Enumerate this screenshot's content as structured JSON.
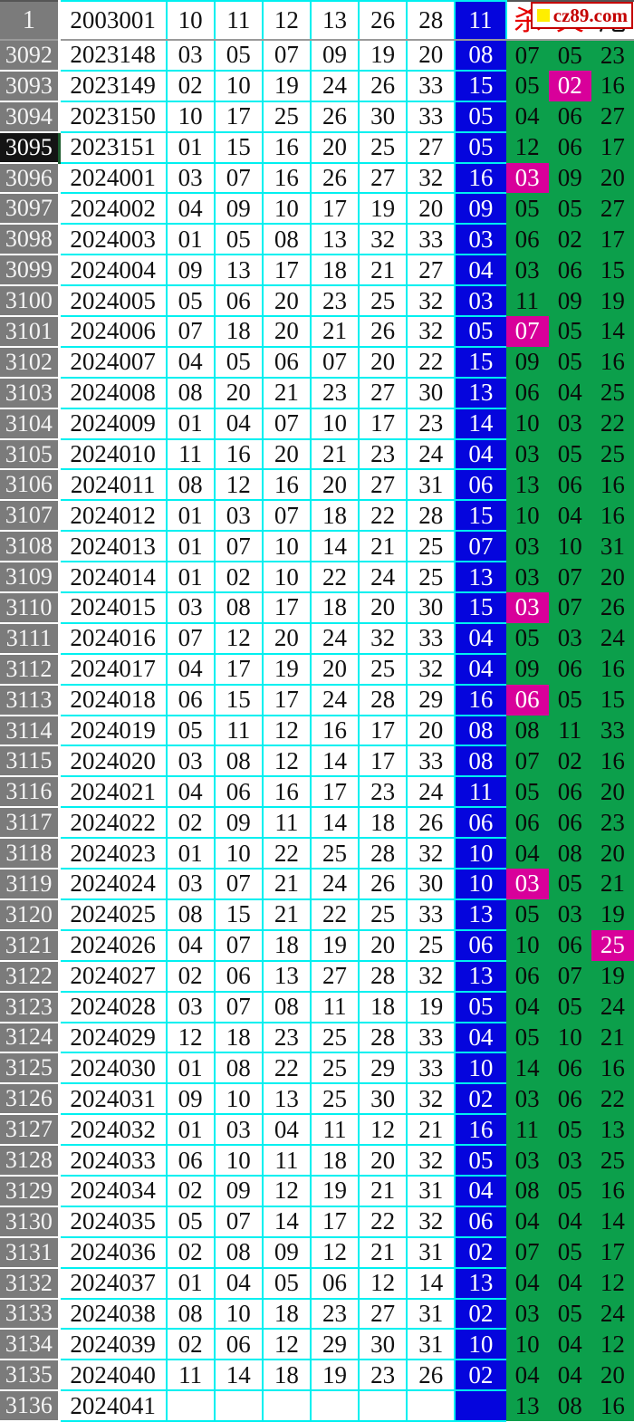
{
  "logo": {
    "text": "cz89.com",
    "square_color": "#ffee00",
    "text_color": "#c40000"
  },
  "colors": {
    "index_bg": "#7b7b7b",
    "selected_index_bg": "#141414",
    "grid": "#00f0f0",
    "blue_ball": "#0505dd",
    "kill_bg": "#0c9f4b",
    "hit_bg": "#d8009a",
    "header_char_red": "#e60000"
  },
  "header": {
    "index": "1",
    "period": "2003001",
    "reds": [
      "10",
      "11",
      "12",
      "13",
      "26",
      "28"
    ],
    "blue": "11",
    "kill_cols": [
      "杀",
      "失",
      "尾"
    ]
  },
  "rows": [
    {
      "idx": "3092",
      "period": "2023148",
      "reds": [
        "03",
        "05",
        "07",
        "09",
        "19",
        "20"
      ],
      "blue": "08",
      "kills": [
        "07",
        "05",
        "23"
      ],
      "hits": [
        0,
        0,
        0
      ],
      "selected": false
    },
    {
      "idx": "3093",
      "period": "2023149",
      "reds": [
        "02",
        "10",
        "19",
        "24",
        "26",
        "33"
      ],
      "blue": "15",
      "kills": [
        "05",
        "02",
        "16"
      ],
      "hits": [
        0,
        1,
        0
      ],
      "selected": false
    },
    {
      "idx": "3094",
      "period": "2023150",
      "reds": [
        "10",
        "17",
        "25",
        "26",
        "30",
        "33"
      ],
      "blue": "05",
      "kills": [
        "04",
        "06",
        "27"
      ],
      "hits": [
        0,
        0,
        0
      ],
      "selected": false
    },
    {
      "idx": "3095",
      "period": "2023151",
      "reds": [
        "01",
        "15",
        "16",
        "20",
        "25",
        "27"
      ],
      "blue": "05",
      "kills": [
        "12",
        "06",
        "17"
      ],
      "hits": [
        0,
        0,
        0
      ],
      "selected": true
    },
    {
      "idx": "3096",
      "period": "2024001",
      "reds": [
        "03",
        "07",
        "16",
        "26",
        "27",
        "32"
      ],
      "blue": "16",
      "kills": [
        "03",
        "09",
        "20"
      ],
      "hits": [
        1,
        0,
        0
      ],
      "selected": false
    },
    {
      "idx": "3097",
      "period": "2024002",
      "reds": [
        "04",
        "09",
        "10",
        "17",
        "19",
        "20"
      ],
      "blue": "09",
      "kills": [
        "05",
        "05",
        "27"
      ],
      "hits": [
        0,
        0,
        0
      ],
      "selected": false
    },
    {
      "idx": "3098",
      "period": "2024003",
      "reds": [
        "01",
        "05",
        "08",
        "13",
        "32",
        "33"
      ],
      "blue": "03",
      "kills": [
        "06",
        "02",
        "17"
      ],
      "hits": [
        0,
        0,
        0
      ],
      "selected": false
    },
    {
      "idx": "3099",
      "period": "2024004",
      "reds": [
        "09",
        "13",
        "17",
        "18",
        "21",
        "27"
      ],
      "blue": "04",
      "kills": [
        "03",
        "06",
        "15"
      ],
      "hits": [
        0,
        0,
        0
      ],
      "selected": false
    },
    {
      "idx": "3100",
      "period": "2024005",
      "reds": [
        "05",
        "06",
        "20",
        "23",
        "25",
        "32"
      ],
      "blue": "03",
      "kills": [
        "11",
        "09",
        "19"
      ],
      "hits": [
        0,
        0,
        0
      ],
      "selected": false
    },
    {
      "idx": "3101",
      "period": "2024006",
      "reds": [
        "07",
        "18",
        "20",
        "21",
        "26",
        "32"
      ],
      "blue": "05",
      "kills": [
        "07",
        "05",
        "14"
      ],
      "hits": [
        1,
        0,
        0
      ],
      "selected": false
    },
    {
      "idx": "3102",
      "period": "2024007",
      "reds": [
        "04",
        "05",
        "06",
        "07",
        "20",
        "22"
      ],
      "blue": "15",
      "kills": [
        "09",
        "05",
        "16"
      ],
      "hits": [
        0,
        0,
        0
      ],
      "selected": false
    },
    {
      "idx": "3103",
      "period": "2024008",
      "reds": [
        "08",
        "20",
        "21",
        "23",
        "27",
        "30"
      ],
      "blue": "13",
      "kills": [
        "06",
        "04",
        "25"
      ],
      "hits": [
        0,
        0,
        0
      ],
      "selected": false
    },
    {
      "idx": "3104",
      "period": "2024009",
      "reds": [
        "01",
        "04",
        "07",
        "10",
        "17",
        "23"
      ],
      "blue": "14",
      "kills": [
        "10",
        "03",
        "22"
      ],
      "hits": [
        0,
        0,
        0
      ],
      "selected": false
    },
    {
      "idx": "3105",
      "period": "2024010",
      "reds": [
        "11",
        "16",
        "20",
        "21",
        "23",
        "24"
      ],
      "blue": "04",
      "kills": [
        "03",
        "05",
        "25"
      ],
      "hits": [
        0,
        0,
        0
      ],
      "selected": false
    },
    {
      "idx": "3106",
      "period": "2024011",
      "reds": [
        "08",
        "12",
        "16",
        "20",
        "27",
        "31"
      ],
      "blue": "06",
      "kills": [
        "13",
        "06",
        "16"
      ],
      "hits": [
        0,
        0,
        0
      ],
      "selected": false
    },
    {
      "idx": "3107",
      "period": "2024012",
      "reds": [
        "01",
        "03",
        "07",
        "18",
        "22",
        "28"
      ],
      "blue": "15",
      "kills": [
        "10",
        "04",
        "16"
      ],
      "hits": [
        0,
        0,
        0
      ],
      "selected": false
    },
    {
      "idx": "3108",
      "period": "2024013",
      "reds": [
        "01",
        "07",
        "10",
        "14",
        "21",
        "25"
      ],
      "blue": "07",
      "kills": [
        "03",
        "10",
        "31"
      ],
      "hits": [
        0,
        0,
        0
      ],
      "selected": false
    },
    {
      "idx": "3109",
      "period": "2024014",
      "reds": [
        "01",
        "02",
        "10",
        "22",
        "24",
        "25"
      ],
      "blue": "13",
      "kills": [
        "03",
        "07",
        "20"
      ],
      "hits": [
        0,
        0,
        0
      ],
      "selected": false
    },
    {
      "idx": "3110",
      "period": "2024015",
      "reds": [
        "03",
        "08",
        "17",
        "18",
        "20",
        "30"
      ],
      "blue": "15",
      "kills": [
        "03",
        "07",
        "26"
      ],
      "hits": [
        1,
        0,
        0
      ],
      "selected": false
    },
    {
      "idx": "3111",
      "period": "2024016",
      "reds": [
        "07",
        "12",
        "20",
        "24",
        "32",
        "33"
      ],
      "blue": "04",
      "kills": [
        "05",
        "03",
        "24"
      ],
      "hits": [
        0,
        0,
        0
      ],
      "selected": false
    },
    {
      "idx": "3112",
      "period": "2024017",
      "reds": [
        "04",
        "17",
        "19",
        "20",
        "25",
        "32"
      ],
      "blue": "04",
      "kills": [
        "09",
        "06",
        "16"
      ],
      "hits": [
        0,
        0,
        0
      ],
      "selected": false
    },
    {
      "idx": "3113",
      "period": "2024018",
      "reds": [
        "06",
        "15",
        "17",
        "24",
        "28",
        "29"
      ],
      "blue": "16",
      "kills": [
        "06",
        "05",
        "15"
      ],
      "hits": [
        1,
        0,
        0
      ],
      "selected": false
    },
    {
      "idx": "3114",
      "period": "2024019",
      "reds": [
        "05",
        "11",
        "12",
        "16",
        "17",
        "20"
      ],
      "blue": "08",
      "kills": [
        "08",
        "11",
        "33"
      ],
      "hits": [
        0,
        0,
        0
      ],
      "selected": false
    },
    {
      "idx": "3115",
      "period": "2024020",
      "reds": [
        "03",
        "08",
        "12",
        "14",
        "17",
        "33"
      ],
      "blue": "08",
      "kills": [
        "07",
        "02",
        "16"
      ],
      "hits": [
        0,
        0,
        0
      ],
      "selected": false
    },
    {
      "idx": "3116",
      "period": "2024021",
      "reds": [
        "04",
        "06",
        "16",
        "17",
        "23",
        "24"
      ],
      "blue": "11",
      "kills": [
        "05",
        "06",
        "20"
      ],
      "hits": [
        0,
        0,
        0
      ],
      "selected": false
    },
    {
      "idx": "3117",
      "period": "2024022",
      "reds": [
        "02",
        "09",
        "11",
        "14",
        "18",
        "26"
      ],
      "blue": "06",
      "kills": [
        "06",
        "06",
        "23"
      ],
      "hits": [
        0,
        0,
        0
      ],
      "selected": false
    },
    {
      "idx": "3118",
      "period": "2024023",
      "reds": [
        "01",
        "10",
        "22",
        "25",
        "28",
        "32"
      ],
      "blue": "10",
      "kills": [
        "04",
        "08",
        "20"
      ],
      "hits": [
        0,
        0,
        0
      ],
      "selected": false
    },
    {
      "idx": "3119",
      "period": "2024024",
      "reds": [
        "03",
        "07",
        "21",
        "24",
        "26",
        "30"
      ],
      "blue": "10",
      "kills": [
        "03",
        "05",
        "21"
      ],
      "hits": [
        1,
        0,
        0
      ],
      "selected": false
    },
    {
      "idx": "3120",
      "period": "2024025",
      "reds": [
        "08",
        "15",
        "21",
        "22",
        "25",
        "33"
      ],
      "blue": "13",
      "kills": [
        "05",
        "03",
        "19"
      ],
      "hits": [
        0,
        0,
        0
      ],
      "selected": false
    },
    {
      "idx": "3121",
      "period": "2024026",
      "reds": [
        "04",
        "07",
        "18",
        "19",
        "20",
        "25"
      ],
      "blue": "06",
      "kills": [
        "10",
        "06",
        "25"
      ],
      "hits": [
        0,
        0,
        1
      ],
      "selected": false
    },
    {
      "idx": "3122",
      "period": "2024027",
      "reds": [
        "02",
        "06",
        "13",
        "27",
        "28",
        "32"
      ],
      "blue": "13",
      "kills": [
        "06",
        "07",
        "19"
      ],
      "hits": [
        0,
        0,
        0
      ],
      "selected": false
    },
    {
      "idx": "3123",
      "period": "2024028",
      "reds": [
        "03",
        "07",
        "08",
        "11",
        "18",
        "19"
      ],
      "blue": "05",
      "kills": [
        "04",
        "05",
        "24"
      ],
      "hits": [
        0,
        0,
        0
      ],
      "selected": false
    },
    {
      "idx": "3124",
      "period": "2024029",
      "reds": [
        "12",
        "18",
        "23",
        "25",
        "28",
        "33"
      ],
      "blue": "04",
      "kills": [
        "05",
        "10",
        "21"
      ],
      "hits": [
        0,
        0,
        0
      ],
      "selected": false
    },
    {
      "idx": "3125",
      "period": "2024030",
      "reds": [
        "01",
        "08",
        "22",
        "25",
        "29",
        "33"
      ],
      "blue": "10",
      "kills": [
        "14",
        "06",
        "16"
      ],
      "hits": [
        0,
        0,
        0
      ],
      "selected": false
    },
    {
      "idx": "3126",
      "period": "2024031",
      "reds": [
        "09",
        "10",
        "13",
        "25",
        "30",
        "32"
      ],
      "blue": "02",
      "kills": [
        "03",
        "06",
        "22"
      ],
      "hits": [
        0,
        0,
        0
      ],
      "selected": false
    },
    {
      "idx": "3127",
      "period": "2024032",
      "reds": [
        "01",
        "03",
        "04",
        "11",
        "12",
        "21"
      ],
      "blue": "16",
      "kills": [
        "11",
        "05",
        "13"
      ],
      "hits": [
        0,
        0,
        0
      ],
      "selected": false
    },
    {
      "idx": "3128",
      "period": "2024033",
      "reds": [
        "06",
        "10",
        "11",
        "18",
        "20",
        "32"
      ],
      "blue": "05",
      "kills": [
        "03",
        "03",
        "25"
      ],
      "hits": [
        0,
        0,
        0
      ],
      "selected": false
    },
    {
      "idx": "3129",
      "period": "2024034",
      "reds": [
        "02",
        "09",
        "12",
        "19",
        "21",
        "31"
      ],
      "blue": "04",
      "kills": [
        "08",
        "05",
        "16"
      ],
      "hits": [
        0,
        0,
        0
      ],
      "selected": false
    },
    {
      "idx": "3130",
      "period": "2024035",
      "reds": [
        "05",
        "07",
        "14",
        "17",
        "22",
        "32"
      ],
      "blue": "06",
      "kills": [
        "04",
        "04",
        "14"
      ],
      "hits": [
        0,
        0,
        0
      ],
      "selected": false
    },
    {
      "idx": "3131",
      "period": "2024036",
      "reds": [
        "02",
        "08",
        "09",
        "12",
        "21",
        "31"
      ],
      "blue": "02",
      "kills": [
        "07",
        "05",
        "17"
      ],
      "hits": [
        0,
        0,
        0
      ],
      "selected": false
    },
    {
      "idx": "3132",
      "period": "2024037",
      "reds": [
        "01",
        "04",
        "05",
        "06",
        "12",
        "14"
      ],
      "blue": "13",
      "kills": [
        "04",
        "04",
        "12"
      ],
      "hits": [
        0,
        0,
        0
      ],
      "selected": false
    },
    {
      "idx": "3133",
      "period": "2024038",
      "reds": [
        "08",
        "10",
        "18",
        "23",
        "27",
        "31"
      ],
      "blue": "02",
      "kills": [
        "03",
        "05",
        "24"
      ],
      "hits": [
        0,
        0,
        0
      ],
      "selected": false
    },
    {
      "idx": "3134",
      "period": "2024039",
      "reds": [
        "02",
        "06",
        "12",
        "29",
        "30",
        "31"
      ],
      "blue": "10",
      "kills": [
        "10",
        "04",
        "12"
      ],
      "hits": [
        0,
        0,
        0
      ],
      "selected": false
    },
    {
      "idx": "3135",
      "period": "2024040",
      "reds": [
        "11",
        "14",
        "18",
        "19",
        "23",
        "26"
      ],
      "blue": "02",
      "kills": [
        "04",
        "04",
        "20"
      ],
      "hits": [
        0,
        0,
        0
      ],
      "selected": false
    },
    {
      "idx": "3136",
      "period": "2024041",
      "reds": [
        "",
        "",
        "",
        "",
        "",
        ""
      ],
      "blue": "",
      "kills": [
        "13",
        "08",
        "16"
      ],
      "hits": [
        0,
        0,
        0
      ],
      "selected": false
    }
  ]
}
